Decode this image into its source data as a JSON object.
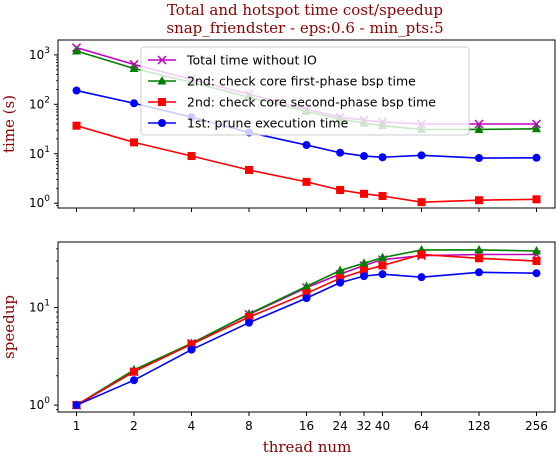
{
  "chart_data": {
    "title": "Total and hotspot time cost/speedup",
    "subtitle": "snap_friendster - eps:0.6 - min_pts:5",
    "xlabel": "thread num",
    "x": [
      1,
      2,
      4,
      8,
      16,
      24,
      32,
      40,
      64,
      128,
      256
    ],
    "xticks": [
      "1",
      "2",
      "4",
      "8",
      "16",
      "24",
      "32",
      "40",
      "64",
      "128",
      "256"
    ],
    "charts": [
      {
        "type": "line",
        "ylabel": "time (s)",
        "yscale": "log",
        "ylim": [
          0.8,
          2000
        ],
        "yticks": [
          {
            "v": 1,
            "base": "10",
            "exp": "0"
          },
          {
            "v": 10,
            "base": "10",
            "exp": "1"
          },
          {
            "v": 100,
            "base": "10",
            "exp": "2"
          },
          {
            "v": 1000,
            "base": "10",
            "exp": "3"
          }
        ],
        "legend": "top-center",
        "series": [
          {
            "name": "Total time without IO",
            "color": "#bf00bf",
            "marker": "x",
            "values": [
              1400,
              640,
              320,
              160,
              80,
              55,
              48,
              44,
              40,
              40,
              40
            ]
          },
          {
            "name": "2nd: check core first-phase bsp time",
            "color": "#008000",
            "marker": "triangle",
            "values": [
              1200,
              530,
              280,
              140,
              72,
              50,
              42,
              37,
              31,
              31,
              32
            ]
          },
          {
            "name": "2nd: check core second-phase bsp time",
            "color": "#ff0000",
            "marker": "square",
            "values": [
              37,
              17,
              9,
              4.7,
              2.7,
              1.85,
              1.55,
              1.4,
              1.05,
              1.15,
              1.2
            ]
          },
          {
            "name": "1st: prune execution time",
            "color": "#0000ff",
            "marker": "circle",
            "values": [
              190,
              105,
              55,
              27,
              15,
              10.5,
              9,
              8.5,
              9.3,
              8.2,
              8.3
            ]
          }
        ]
      },
      {
        "type": "line",
        "ylabel": "speedup",
        "yscale": "log",
        "ylim": [
          0.85,
          47
        ],
        "yticks": [
          {
            "v": 1,
            "base": "10",
            "exp": "0"
          },
          {
            "v": 10,
            "base": "10",
            "exp": "1"
          }
        ],
        "series": [
          {
            "color": "#bf00bf",
            "marker": "x",
            "values": [
              1,
              2.2,
              4.3,
              8.5,
              16,
              22,
              27,
              31,
              34,
              35,
              35
            ]
          },
          {
            "color": "#008000",
            "marker": "triangle",
            "values": [
              1,
              2.3,
              4.3,
              8.6,
              16.5,
              24,
              28.5,
              32.5,
              39,
              39,
              38
            ]
          },
          {
            "color": "#ff0000",
            "marker": "square",
            "values": [
              1,
              2.2,
              4.2,
              8,
              14,
              20,
              24,
              27,
              35,
              32,
              30
            ]
          },
          {
            "color": "#0000ff",
            "marker": "circle",
            "values": [
              1,
              1.8,
              3.7,
              7,
              12.5,
              18,
              21,
              22,
              20.5,
              23,
              22.5
            ]
          }
        ]
      }
    ]
  }
}
